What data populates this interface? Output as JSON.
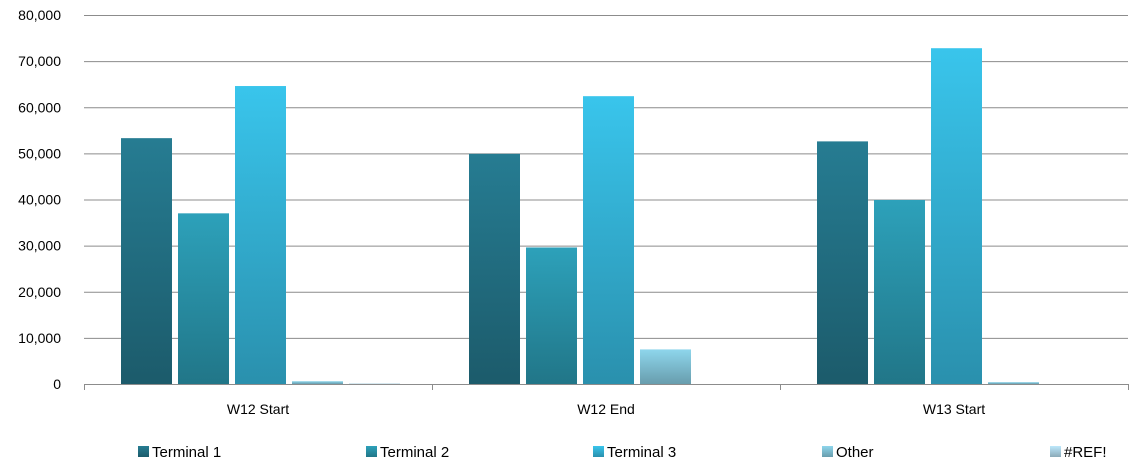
{
  "chart_data": {
    "type": "bar",
    "title": "",
    "xlabel": "",
    "ylabel": "",
    "categories": [
      "W12 Start",
      "W12 End",
      "W13 Start"
    ],
    "series": [
      {
        "name": "Terminal 1",
        "values": [
          53300,
          49900,
          52600
        ],
        "color": "#226f82"
      },
      {
        "name": "Terminal 2",
        "values": [
          37000,
          29600,
          39900
        ],
        "color": "#2890a6"
      },
      {
        "name": "Terminal 3",
        "values": [
          64600,
          62400,
          72800
        ],
        "color": "#33b0d3"
      },
      {
        "name": "Other",
        "values": [
          600,
          7500,
          400
        ],
        "color": "#7fbfd3"
      },
      {
        "name": "#REF!",
        "values": [
          100,
          0,
          0
        ],
        "color": "#a9cfe0"
      }
    ],
    "ylim": [
      0,
      80000
    ],
    "yticks": [
      0,
      10000,
      20000,
      30000,
      40000,
      50000,
      60000,
      70000,
      80000
    ],
    "ytick_labels": [
      "0",
      "10,000",
      "20,000",
      "30,000",
      "40,000",
      "50,000",
      "60,000",
      "70,000",
      "80,000"
    ],
    "grid": true,
    "legend_position": "bottom"
  }
}
